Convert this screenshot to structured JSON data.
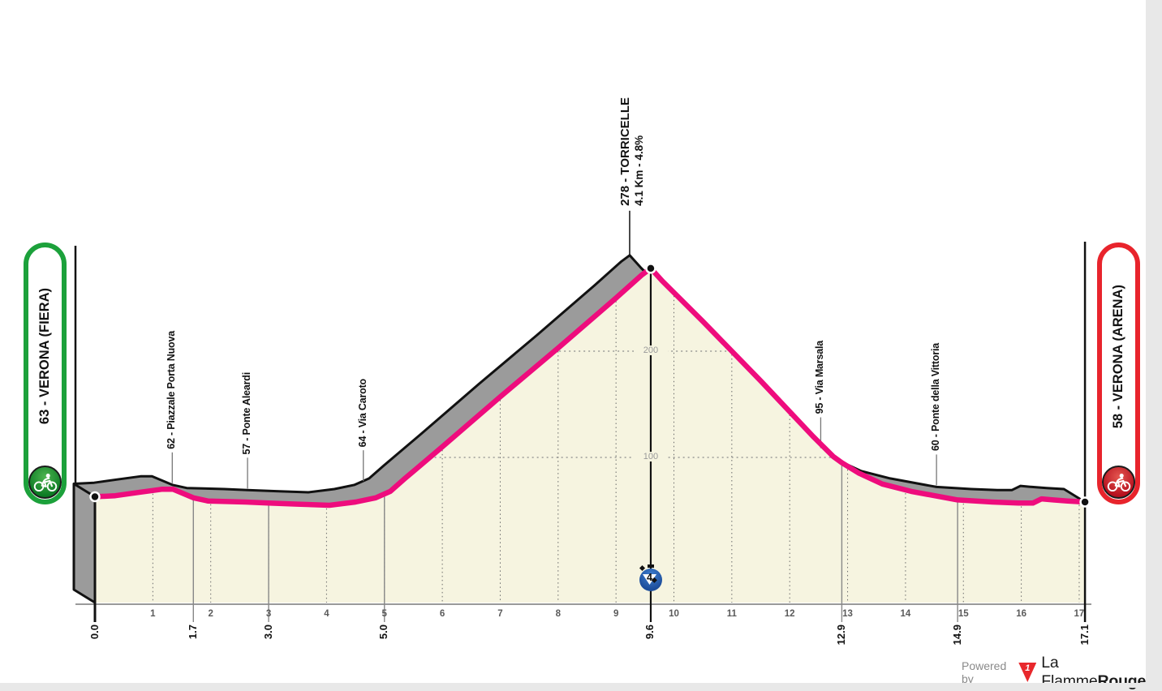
{
  "stage": {
    "start_badge": {
      "label": "63 - VERONA (FIERA)",
      "color": "#1ca13b"
    },
    "finish_badge": {
      "label": "58 - VERONA (ARENA)",
      "color": "#e8242c"
    },
    "footer": {
      "powered_by": "Powered by",
      "logo_number": "1",
      "brand_regular": "La Flamme",
      "brand_bold": "Rouge"
    }
  },
  "chart_data": {
    "type": "area",
    "x_unit": "km",
    "y_unit": "m",
    "xlim": [
      0,
      17.1
    ],
    "x_ticks": [
      1,
      2,
      3,
      4,
      5,
      6,
      7,
      8,
      9,
      10,
      11,
      12,
      13,
      14,
      15,
      16,
      17
    ],
    "y_gridlines": [
      100,
      200
    ],
    "profile": [
      [
        0.0,
        63
      ],
      [
        0.35,
        64
      ],
      [
        0.75,
        67
      ],
      [
        1.15,
        70
      ],
      [
        1.35,
        70
      ],
      [
        1.7,
        62
      ],
      [
        1.95,
        59
      ],
      [
        2.6,
        58
      ],
      [
        3.0,
        57
      ],
      [
        3.5,
        56
      ],
      [
        4.05,
        55
      ],
      [
        4.5,
        58
      ],
      [
        4.85,
        62
      ],
      [
        5.1,
        68
      ],
      [
        5.35,
        80
      ],
      [
        6.0,
        110
      ],
      [
        7.0,
        157
      ],
      [
        8.0,
        203
      ],
      [
        9.0,
        250
      ],
      [
        9.45,
        272
      ],
      [
        9.6,
        278
      ],
      [
        9.8,
        266
      ],
      [
        10.5,
        228
      ],
      [
        11.5,
        172
      ],
      [
        12.4,
        120
      ],
      [
        12.75,
        101
      ],
      [
        12.9,
        95
      ],
      [
        13.2,
        85
      ],
      [
        13.6,
        75
      ],
      [
        14.1,
        68
      ],
      [
        14.9,
        60
      ],
      [
        15.5,
        58
      ],
      [
        15.95,
        57
      ],
      [
        16.2,
        57
      ],
      [
        16.35,
        61
      ],
      [
        16.55,
        60
      ],
      [
        16.8,
        59
      ],
      [
        17.1,
        58
      ]
    ],
    "start": {
      "km": 0.0,
      "elevation": 63,
      "name": "VERONA (FIERA)"
    },
    "finish": {
      "km": 17.1,
      "elevation": 58,
      "name": "VERONA (ARENA)"
    },
    "peak": {
      "km": 9.6,
      "elevation": 278,
      "label": "278 - TORRICELLE",
      "detail": "4.1 Km - 4.8%"
    },
    "waypoints": [
      {
        "km": 1.7,
        "elevation": 62,
        "label": "62 - Piazzale Porta Nuova"
      },
      {
        "km": 3.0,
        "elevation": 57,
        "label": "57 - Ponte Aleardi"
      },
      {
        "km": 5.0,
        "elevation": 64,
        "label": "64 - Via Caroto"
      },
      {
        "km": 12.9,
        "elevation": 95,
        "label": "95 - Via Marsala"
      },
      {
        "km": 14.9,
        "elevation": 60,
        "label": "60 - Ponte della Vittoria"
      }
    ],
    "km_markers": [
      {
        "km": 0.0,
        "label": "0.0",
        "style": "start"
      },
      {
        "km": 1.7,
        "label": "1.7",
        "style": "intermediate"
      },
      {
        "km": 3.0,
        "label": "3.0",
        "style": "intermediate"
      },
      {
        "km": 5.0,
        "label": "5.0",
        "style": "intermediate"
      },
      {
        "km": 9.6,
        "label": "9.6",
        "style": "summit"
      },
      {
        "km": 12.9,
        "label": "12.9",
        "style": "intermediate"
      },
      {
        "km": 14.9,
        "label": "14.9",
        "style": "intermediate"
      },
      {
        "km": 17.1,
        "label": "17.1",
        "style": "finish"
      }
    ],
    "climb_marker": {
      "km": 9.6,
      "category": "4"
    },
    "colors": {
      "route": "#ee0c7d",
      "fill": "#f6f4e0",
      "ribbon": "#9b9b9b",
      "outline": "#111111",
      "axis": "#9a9a9a",
      "tick_label": "#5a5a5a",
      "grid_label": "#999999",
      "climb_badge": "#1d4e9b"
    }
  }
}
